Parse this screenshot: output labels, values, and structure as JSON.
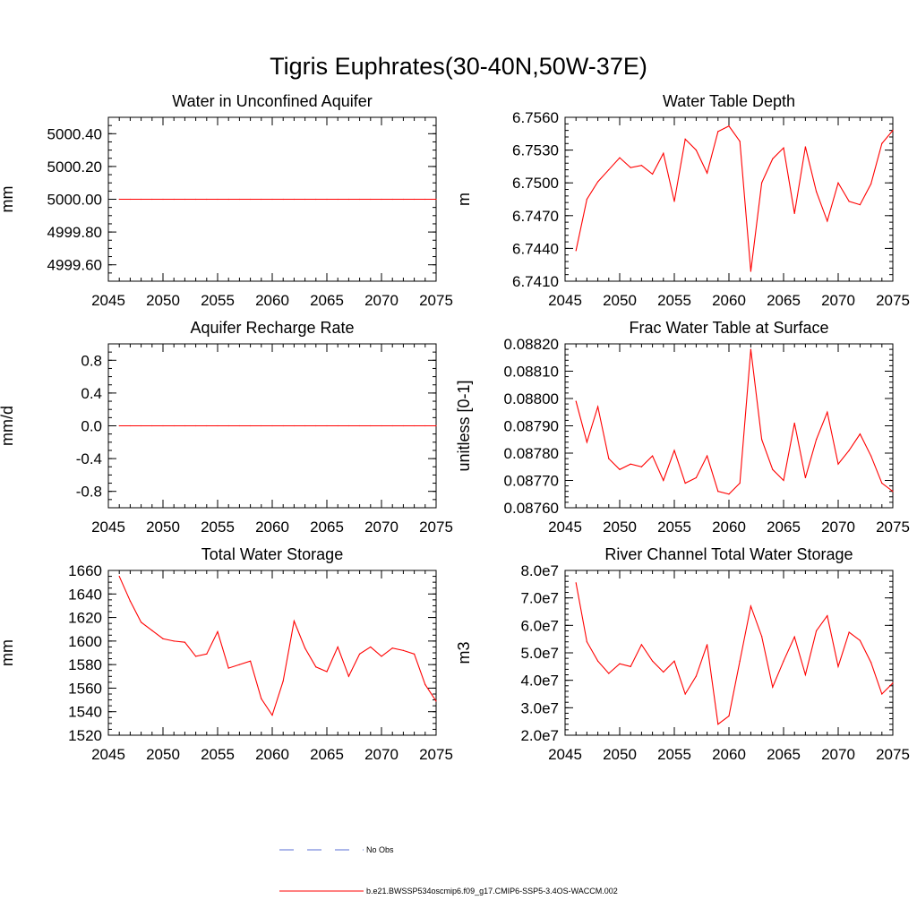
{
  "title": "Tigris Euphrates(30-40N,50W-37E)",
  "colors": {
    "series": "#ff0000",
    "obs": "#5a6fd6",
    "axis": "#000000"
  },
  "legend": {
    "entries": [
      {
        "label": "No Obs",
        "style": "dashed",
        "color": "#5a6fd6"
      },
      {
        "label": "b.e21.BWSSP534oscmip6.f09_g17.CMIP6-SSP5-3.4OS-WACCM.002",
        "style": "solid",
        "color": "#ff0000"
      }
    ]
  },
  "chart_data": [
    {
      "type": "line",
      "title": "Water in Unconfined Aquifer",
      "ylabel": "mm",
      "xlabel": "",
      "xlim": [
        2045,
        2075
      ],
      "ylim": [
        4999.5,
        5000.5
      ],
      "xticks": [
        "2045",
        "2050",
        "2055",
        "2060",
        "2065",
        "2070",
        "2075"
      ],
      "yticks": [
        "4999.60",
        "4999.80",
        "5000.00",
        "5000.20",
        "5000.40"
      ],
      "yticks_v": [
        4999.6,
        4999.8,
        5000.0,
        5000.2,
        5000.4
      ],
      "ymin_step": 0.05,
      "x": [
        2046,
        2047,
        2048,
        2049,
        2050,
        2051,
        2052,
        2053,
        2054,
        2055,
        2056,
        2057,
        2058,
        2059,
        2060,
        2061,
        2062,
        2063,
        2064,
        2065,
        2066,
        2067,
        2068,
        2069,
        2070,
        2071,
        2072,
        2073,
        2074,
        2075
      ],
      "series": [
        {
          "name": "b.e21.BWSSP534oscmip6.f09_g17.CMIP6-SSP5-3.4OS-WACCM.002",
          "values": [
            5000,
            5000,
            5000,
            5000,
            5000,
            5000,
            5000,
            5000,
            5000,
            5000,
            5000,
            5000,
            5000,
            5000,
            5000,
            5000,
            5000,
            5000,
            5000,
            5000,
            5000,
            5000,
            5000,
            5000,
            5000,
            5000,
            5000,
            5000,
            5000,
            5000
          ]
        }
      ]
    },
    {
      "type": "line",
      "title": "Water Table Depth",
      "ylabel": "m",
      "xlabel": "",
      "xlim": [
        2045,
        2075
      ],
      "ylim": [
        6.741,
        6.756
      ],
      "xticks": [
        "2045",
        "2050",
        "2055",
        "2060",
        "2065",
        "2070",
        "2075"
      ],
      "yticks": [
        "6.7410",
        "6.7440",
        "6.7470",
        "6.7500",
        "6.7530",
        "6.7560"
      ],
      "yticks_v": [
        6.741,
        6.744,
        6.747,
        6.75,
        6.753,
        6.756
      ],
      "ymin_step": 0.0006,
      "x": [
        2046,
        2047,
        2048,
        2049,
        2050,
        2051,
        2052,
        2053,
        2054,
        2055,
        2056,
        2057,
        2058,
        2059,
        2060,
        2061,
        2062,
        2063,
        2064,
        2065,
        2066,
        2067,
        2068,
        2069,
        2070,
        2071,
        2072,
        2073,
        2074,
        2075
      ],
      "series": [
        {
          "name": "b.e21.BWSSP534oscmip6.f09_g17.CMIP6-SSP5-3.4OS-WACCM.002",
          "values": [
            6.7438,
            6.7485,
            6.7501,
            6.7512,
            6.7523,
            6.7514,
            6.7516,
            6.7508,
            6.7527,
            6.7483,
            6.754,
            6.753,
            6.7509,
            6.7547,
            6.7552,
            6.7538,
            6.7419,
            6.75,
            6.7522,
            6.7532,
            6.7472,
            6.7533,
            6.7492,
            6.7465,
            6.75,
            6.7483,
            6.748,
            6.7499,
            6.7536,
            6.7548
          ]
        }
      ]
    },
    {
      "type": "line",
      "title": "Aquifer Recharge Rate",
      "ylabel": "mm/d",
      "xlabel": "",
      "xlim": [
        2045,
        2075
      ],
      "ylim": [
        -1.0,
        1.0
      ],
      "xticks": [
        "2045",
        "2050",
        "2055",
        "2060",
        "2065",
        "2070",
        "2075"
      ],
      "yticks": [
        "-0.8",
        "-0.4",
        "0.0",
        "0.4",
        "0.8"
      ],
      "yticks_v": [
        -0.8,
        -0.4,
        0.0,
        0.4,
        0.8
      ],
      "ymin_step": 0.1,
      "x": [
        2046,
        2047,
        2048,
        2049,
        2050,
        2051,
        2052,
        2053,
        2054,
        2055,
        2056,
        2057,
        2058,
        2059,
        2060,
        2061,
        2062,
        2063,
        2064,
        2065,
        2066,
        2067,
        2068,
        2069,
        2070,
        2071,
        2072,
        2073,
        2074,
        2075
      ],
      "series": [
        {
          "name": "b.e21.BWSSP534oscmip6.f09_g17.CMIP6-SSP5-3.4OS-WACCM.002",
          "values": [
            0,
            0,
            0,
            0,
            0,
            0,
            0,
            0,
            0,
            0,
            0,
            0,
            0,
            0,
            0,
            0,
            0,
            0,
            0,
            0,
            0,
            0,
            0,
            0,
            0,
            0,
            0,
            0,
            0,
            0
          ]
        }
      ]
    },
    {
      "type": "line",
      "title": "Frac Water Table at Surface",
      "ylabel": "unitless [0-1]",
      "xlabel": "",
      "xlim": [
        2045,
        2075
      ],
      "ylim": [
        0.0876,
        0.0882
      ],
      "xticks": [
        "2045",
        "2050",
        "2055",
        "2060",
        "2065",
        "2070",
        "2075"
      ],
      "yticks": [
        "0.08760",
        "0.08770",
        "0.08780",
        "0.08790",
        "0.08800",
        "0.08810",
        "0.08820"
      ],
      "yticks_v": [
        0.0876,
        0.0877,
        0.0878,
        0.0879,
        0.088,
        0.0881,
        0.0882
      ],
      "ymin_step": 2e-05,
      "x": [
        2046,
        2047,
        2048,
        2049,
        2050,
        2051,
        2052,
        2053,
        2054,
        2055,
        2056,
        2057,
        2058,
        2059,
        2060,
        2061,
        2062,
        2063,
        2064,
        2065,
        2066,
        2067,
        2068,
        2069,
        2070,
        2071,
        2072,
        2073,
        2074,
        2075
      ],
      "series": [
        {
          "name": "b.e21.BWSSP534oscmip6.f09_g17.CMIP6-SSP5-3.4OS-WACCM.002",
          "values": [
            0.08799,
            0.08784,
            0.08797,
            0.08778,
            0.08774,
            0.08776,
            0.08775,
            0.08779,
            0.0877,
            0.08781,
            0.08769,
            0.08771,
            0.08779,
            0.08766,
            0.08765,
            0.08769,
            0.08818,
            0.08785,
            0.08774,
            0.0877,
            0.08791,
            0.08771,
            0.08785,
            0.08795,
            0.08776,
            0.08781,
            0.08787,
            0.08779,
            0.08769,
            0.08766
          ]
        }
      ]
    },
    {
      "type": "line",
      "title": "Total Water Storage",
      "ylabel": "mm",
      "xlabel": "",
      "xlim": [
        2045,
        2075
      ],
      "ylim": [
        1520,
        1660
      ],
      "xticks": [
        "2045",
        "2050",
        "2055",
        "2060",
        "2065",
        "2070",
        "2075"
      ],
      "yticks": [
        "1520",
        "1540",
        "1560",
        "1580",
        "1600",
        "1620",
        "1640",
        "1660"
      ],
      "yticks_v": [
        1520,
        1540,
        1560,
        1580,
        1600,
        1620,
        1640,
        1660
      ],
      "ymin_step": 5,
      "x": [
        2046,
        2047,
        2048,
        2049,
        2050,
        2051,
        2052,
        2053,
        2054,
        2055,
        2056,
        2057,
        2058,
        2059,
        2060,
        2061,
        2062,
        2063,
        2064,
        2065,
        2066,
        2067,
        2068,
        2069,
        2070,
        2071,
        2072,
        2073,
        2074,
        2075
      ],
      "series": [
        {
          "name": "b.e21.BWSSP534oscmip6.f09_g17.CMIP6-SSP5-3.4OS-WACCM.002",
          "values": [
            1655,
            1634,
            1616,
            1609,
            1602,
            1600,
            1599,
            1587,
            1589,
            1608,
            1577,
            1580,
            1583,
            1551,
            1537,
            1566,
            1617,
            1594,
            1578,
            1574,
            1595,
            1570,
            1589,
            1595,
            1587,
            1594,
            1592,
            1589,
            1563,
            1549
          ]
        }
      ]
    },
    {
      "type": "line",
      "title": "River Channel Total Water Storage",
      "ylabel": "m3",
      "xlabel": "",
      "xlim": [
        2045,
        2075
      ],
      "ylim": [
        20000000,
        80000000
      ],
      "xticks": [
        "2045",
        "2050",
        "2055",
        "2060",
        "2065",
        "2070",
        "2075"
      ],
      "yticks": [
        "2.0e7",
        "3.0e7",
        "4.0e7",
        "5.0e7",
        "6.0e7",
        "7.0e7",
        "8.0e7"
      ],
      "yticks_v": [
        20000000,
        30000000,
        40000000,
        50000000,
        60000000,
        70000000,
        80000000
      ],
      "ymin_step": 2000000,
      "x": [
        2046,
        2047,
        2048,
        2049,
        2050,
        2051,
        2052,
        2053,
        2054,
        2055,
        2056,
        2057,
        2058,
        2059,
        2060,
        2061,
        2062,
        2063,
        2064,
        2065,
        2066,
        2067,
        2068,
        2069,
        2070,
        2071,
        2072,
        2073,
        2074,
        2075
      ],
      "series": [
        {
          "name": "b.e21.BWSSP534oscmip6.f09_g17.CMIP6-SSP5-3.4OS-WACCM.002",
          "values": [
            75500000,
            54000000,
            47000000,
            42500000,
            46000000,
            45000000,
            53000000,
            47000000,
            43000000,
            47000000,
            35000000,
            41500000,
            53000000,
            24000000,
            27000000,
            47000000,
            67000000,
            56000000,
            37500000,
            47000000,
            55800000,
            42000000,
            58000000,
            63500000,
            45000000,
            57500000,
            54500000,
            46500000,
            35000000,
            39000000
          ]
        }
      ]
    }
  ]
}
